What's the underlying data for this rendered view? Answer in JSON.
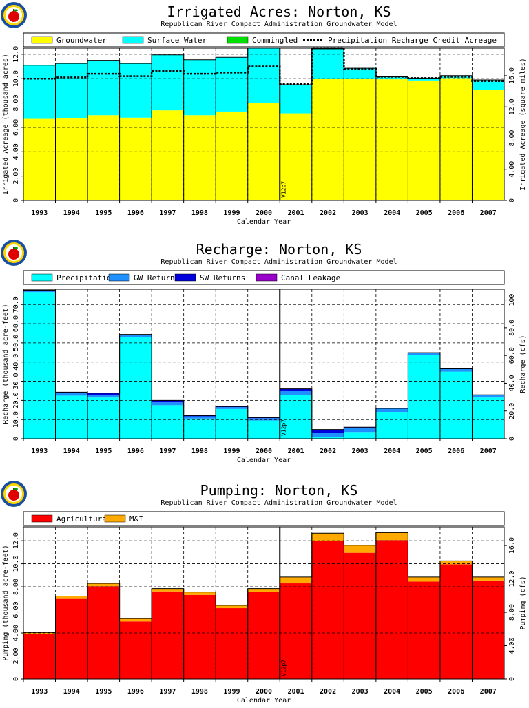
{
  "colors": {
    "groundwater": "#ffff00",
    "surface_water": "#00ffff",
    "commingled": "#00e000",
    "gw_returns": "#1e90ff",
    "sw_returns": "#0000dd",
    "canal_leakage": "#9900cc",
    "agricultural": "#ff0000",
    "mi": "#ffaa00"
  },
  "logo": {
    "name": "apple-logo-icon"
  },
  "chart_data": [
    {
      "type": "bar",
      "stacked": true,
      "title": "Irrigated Acres: Norton, KS",
      "subtitle": "Republican River Compact Administration Groundwater Model",
      "xlabel": "Calendar Year",
      "ylabel": "Irrigated Acreage (thousand acres)",
      "y2label": "Irrigated Acreage (square miles)",
      "ylim": [
        0,
        12.5
      ],
      "yticks": [
        "0",
        "2.00",
        "4.00",
        "6.00",
        "8.00",
        "10.0",
        "12.0"
      ],
      "y2ticks": [
        "0",
        "4.00",
        "8.00",
        "12.0",
        "16.0"
      ],
      "y2_tick_values_in_y_units": [
        0,
        2.56,
        5.12,
        7.68,
        10.24
      ],
      "marker_label": "V12p7",
      "marker_after": "2000",
      "categories": [
        "1993",
        "1994",
        "1995",
        "1996",
        "1997",
        "1998",
        "1999",
        "2000",
        "2001",
        "2002",
        "2003",
        "2004",
        "2005",
        "2006",
        "2007"
      ],
      "series": [
        {
          "name": "Groundwater",
          "color_key": "groundwater",
          "values": [
            6.7,
            6.75,
            7.0,
            6.8,
            7.4,
            7.0,
            7.3,
            8.0,
            7.15,
            10.0,
            10.0,
            9.95,
            9.85,
            10.05,
            9.1
          ]
        },
        {
          "name": "Surface Water",
          "color_key": "surface_water",
          "values": [
            4.4,
            4.5,
            4.5,
            4.45,
            4.55,
            4.55,
            4.45,
            4.5,
            2.35,
            2.45,
            0.85,
            0.2,
            0.2,
            0.2,
            0.8
          ]
        },
        {
          "name": "Commingled",
          "color_key": "commingled",
          "values": [
            0,
            0,
            0,
            0,
            0,
            0,
            0,
            0,
            0,
            0,
            0,
            0,
            0,
            0,
            0
          ]
        }
      ],
      "line": {
        "name": "Precipitation Recharge Credit Acreage",
        "values": [
          10.0,
          10.1,
          10.4,
          10.2,
          10.65,
          10.4,
          10.5,
          11.0,
          9.6,
          12.5,
          10.8,
          10.15,
          10.05,
          10.15,
          9.8
        ]
      }
    },
    {
      "type": "bar",
      "stacked": true,
      "title": "Recharge: Norton, KS",
      "subtitle": "Republican River Compact Administration Groundwater Model",
      "xlabel": "Calendar Year",
      "ylabel": "Recharge (thousand acre-feet)",
      "y2label": "Recharge (cfs)",
      "ylim": [
        0,
        78
      ],
      "yticks": [
        "0",
        "10.0",
        "20.0",
        "30.0",
        "40.0",
        "50.0",
        "60.0",
        "70.0"
      ],
      "y2ticks": [
        "0",
        "20.0",
        "40.0",
        "60.0",
        "80.0",
        "100"
      ],
      "y2_tick_values_in_y_units": [
        0,
        14.48,
        28.96,
        43.44,
        57.92,
        72.4
      ],
      "marker_label": "V12p7",
      "marker_after": "2000",
      "categories": [
        "1993",
        "1994",
        "1995",
        "1996",
        "1997",
        "1998",
        "1999",
        "2000",
        "2001",
        "2002",
        "2003",
        "2004",
        "2005",
        "2006",
        "2007"
      ],
      "series": [
        {
          "name": "Precipitation",
          "color_key": "surface_water",
          "values": [
            76.5,
            22.5,
            21.5,
            53.0,
            17.5,
            10.5,
            15.5,
            9.5,
            23.0,
            1.0,
            3.5,
            14.0,
            43.5,
            35.0,
            21.5
          ]
        },
        {
          "name": "GW Returns",
          "color_key": "gw_returns",
          "values": [
            0.8,
            1.5,
            1.5,
            1.1,
            1.5,
            1.2,
            1.0,
            1.2,
            2.0,
            2.0,
            2.3,
            1.8,
            1.4,
            1.5,
            1.4
          ]
        },
        {
          "name": "SW Returns",
          "color_key": "sw_returns",
          "values": [
            0.2,
            0.3,
            0.8,
            0.3,
            1.0,
            0.4,
            0.3,
            0.3,
            1.0,
            1.8,
            0.2,
            0.0,
            0.0,
            0.0,
            0.0
          ]
        },
        {
          "name": "Canal Leakage",
          "color_key": "canal_leakage",
          "values": [
            0,
            0,
            0,
            0,
            0,
            0,
            0,
            0,
            0,
            0,
            0,
            0,
            0,
            0,
            0
          ]
        }
      ]
    },
    {
      "type": "bar",
      "stacked": true,
      "title": "Pumping: Norton, KS",
      "subtitle": "Republican River Compact Administration Groundwater Model",
      "xlabel": "Calendar Year",
      "ylabel": "Pumping (thousand acre-feet)",
      "y2label": "Pumping (cfs)",
      "ylim": [
        0,
        13.2
      ],
      "yticks": [
        "0",
        "2.00",
        "4.00",
        "6.00",
        "8.00",
        "10.0",
        "12.0"
      ],
      "y2ticks": [
        "0",
        "4.00",
        "8.00",
        "12.0",
        "16.0"
      ],
      "y2_tick_values_in_y_units": [
        0,
        2.896,
        5.792,
        8.688,
        11.584
      ],
      "marker_label": "V12p7",
      "marker_after": "2000",
      "categories": [
        "1993",
        "1994",
        "1995",
        "1996",
        "1997",
        "1998",
        "1999",
        "2000",
        "2001",
        "2002",
        "2003",
        "2004",
        "2005",
        "2006",
        "2007"
      ],
      "series": [
        {
          "name": "Agricultural",
          "color_key": "agricultural",
          "values": [
            3.9,
            6.95,
            8.05,
            5.0,
            7.6,
            7.3,
            6.15,
            7.55,
            8.3,
            12.0,
            10.95,
            12.05,
            8.45,
            9.95,
            8.55
          ]
        },
        {
          "name": "M&I",
          "color_key": "mi",
          "values": [
            0.15,
            0.25,
            0.25,
            0.25,
            0.25,
            0.25,
            0.25,
            0.3,
            0.55,
            0.65,
            0.65,
            0.65,
            0.4,
            0.3,
            0.3
          ]
        }
      ]
    }
  ]
}
